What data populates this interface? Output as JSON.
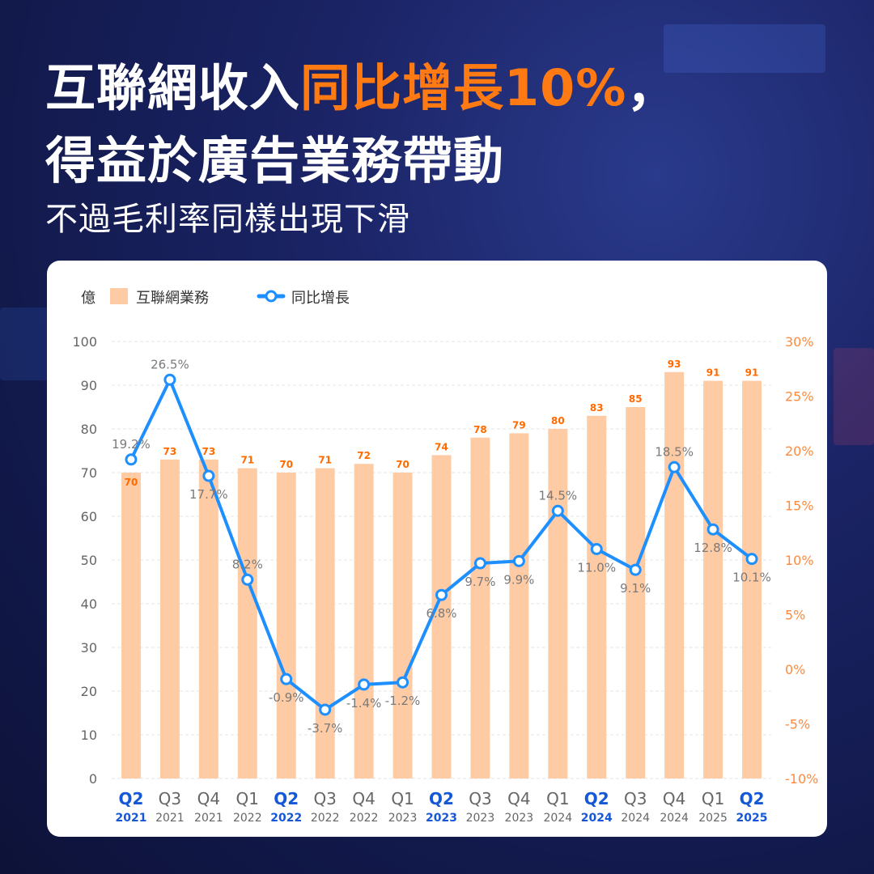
{
  "title": {
    "line1_prefix": "互聯網收入",
    "line1_highlight": "同比增長10%",
    "line1_suffix": "，",
    "line2": "得益於廣告業務帶動",
    "subtitle": "不過毛利率同樣出現下滑"
  },
  "colors": {
    "highlight": "#ff7a12",
    "bar": "#ffcba4",
    "line": "#1e8fff",
    "highlight_quarter": "#1557d6"
  },
  "chart_data": {
    "type": "bar+line",
    "unit_label": "億",
    "legend": [
      "互聯網業務",
      "同比增長"
    ],
    "quarters": [
      "Q2",
      "Q3",
      "Q4",
      "Q1",
      "Q2",
      "Q3",
      "Q4",
      "Q1",
      "Q2",
      "Q3",
      "Q4",
      "Q1",
      "Q2",
      "Q3",
      "Q4",
      "Q1",
      "Q2"
    ],
    "years": [
      "2021",
      "2021",
      "2021",
      "2022",
      "2022",
      "2022",
      "2022",
      "2023",
      "2023",
      "2023",
      "2023",
      "2024",
      "2024",
      "2024",
      "2024",
      "2025",
      "2025"
    ],
    "highlighted": [
      true,
      false,
      false,
      false,
      true,
      false,
      false,
      false,
      true,
      false,
      false,
      false,
      true,
      false,
      false,
      false,
      true
    ],
    "series": [
      {
        "name": "互聯網業務",
        "type": "bar",
        "axis": "left",
        "values": [
          70,
          73,
          73,
          71,
          70,
          71,
          72,
          70,
          74,
          78,
          79,
          80,
          83,
          85,
          93,
          91,
          91
        ]
      },
      {
        "name": "同比增長",
        "type": "line",
        "axis": "right",
        "values": [
          19.2,
          26.5,
          17.7,
          8.2,
          -0.9,
          -3.7,
          -1.4,
          -1.2,
          6.8,
          9.7,
          9.9,
          14.5,
          11.0,
          9.1,
          18.5,
          12.8,
          10.1
        ]
      }
    ],
    "value_labels": [
      "19.2%",
      "26.5%",
      "17.7%",
      "8.2%",
      "-0.9%",
      "-3.7%",
      "-1.4%",
      "-1.2%",
      "6.8%",
      "9.7%",
      "9.9%",
      "14.5%",
      "11.0%",
      "9.1%",
      "18.5%",
      "12.8%",
      "10.1%"
    ],
    "left_axis": {
      "ticks": [
        "0",
        "10",
        "20",
        "30",
        "40",
        "50",
        "60",
        "70",
        "80",
        "90",
        "100"
      ],
      "range": [
        0,
        100
      ]
    },
    "right_axis": {
      "ticks": [
        "-10%",
        "-5%",
        "0%",
        "5%",
        "10%",
        "15%",
        "20%",
        "25%",
        "30%"
      ],
      "range": [
        -10,
        30
      ]
    },
    "grid": true
  }
}
